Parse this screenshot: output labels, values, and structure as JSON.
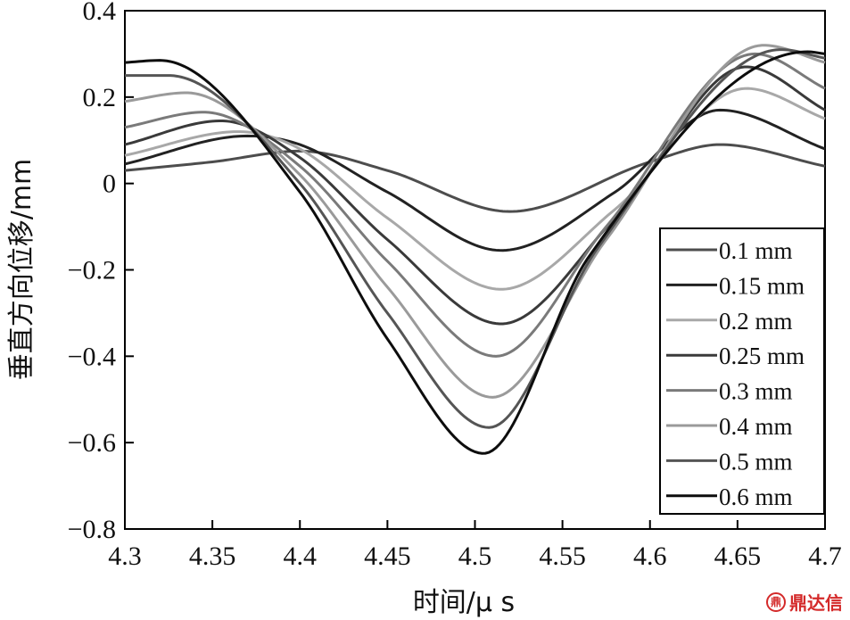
{
  "chart_data": {
    "type": "line",
    "ylabel": "垂直方向位移/mm",
    "xlabel": "时间/μ s",
    "xlim": [
      4.3,
      4.7
    ],
    "ylim": [
      -0.8,
      0.4
    ],
    "xticks": [
      "4.3",
      "4.35",
      "4.4",
      "4.45",
      "4.5",
      "4.55",
      "4.6",
      "4.65",
      "4.7"
    ],
    "yticks": [
      "0.4",
      "0.2",
      "0",
      "−0.2",
      "−0.4",
      "−0.6",
      "−0.8"
    ],
    "grid": false,
    "legend_position": "bottom-right",
    "series": [
      {
        "name": "0.1 mm",
        "color": "#4d4d4d",
        "x": [
          4.3,
          4.35,
          4.4,
          4.45,
          4.52,
          4.6,
          4.64,
          4.7
        ],
        "y": [
          0.03,
          0.05,
          0.075,
          0.03,
          -0.065,
          0.05,
          0.09,
          0.04
        ]
      },
      {
        "name": "0.15 mm",
        "color": "#222222",
        "x": [
          4.3,
          4.37,
          4.4,
          4.45,
          4.515,
          4.58,
          4.64,
          4.7
        ],
        "y": [
          0.045,
          0.11,
          0.09,
          -0.02,
          -0.155,
          -0.02,
          0.17,
          0.08
        ]
      },
      {
        "name": "0.2 mm",
        "color": "#a8a8a8",
        "x": [
          4.3,
          4.365,
          4.4,
          4.45,
          4.515,
          4.58,
          4.655,
          4.7
        ],
        "y": [
          0.065,
          0.12,
          0.08,
          -0.08,
          -0.245,
          -0.06,
          0.22,
          0.15
        ]
      },
      {
        "name": "0.25 mm",
        "color": "#3a3a3a",
        "x": [
          4.3,
          4.355,
          4.4,
          4.45,
          4.515,
          4.58,
          4.655,
          4.7
        ],
        "y": [
          0.09,
          0.145,
          0.06,
          -0.13,
          -0.325,
          -0.08,
          0.27,
          0.17
        ]
      },
      {
        "name": "0.3 mm",
        "color": "#7a7a7a",
        "x": [
          4.3,
          4.345,
          4.4,
          4.45,
          4.512,
          4.575,
          4.66,
          4.7
        ],
        "y": [
          0.13,
          0.165,
          0.04,
          -0.18,
          -0.4,
          -0.1,
          0.3,
          0.22
        ]
      },
      {
        "name": "0.4 mm",
        "color": "#9a9a9a",
        "x": [
          4.3,
          4.335,
          4.4,
          4.45,
          4.51,
          4.575,
          4.665,
          4.7
        ],
        "y": [
          0.19,
          0.21,
          0.02,
          -0.24,
          -0.495,
          -0.13,
          0.32,
          0.28
        ]
      },
      {
        "name": "0.5 mm",
        "color": "#555555",
        "x": [
          4.3,
          4.325,
          4.4,
          4.45,
          4.508,
          4.57,
          4.675,
          4.7
        ],
        "y": [
          0.25,
          0.25,
          0.0,
          -0.3,
          -0.565,
          -0.15,
          0.31,
          0.29
        ]
      },
      {
        "name": "0.6 mm",
        "color": "#0d0d0d",
        "x": [
          4.3,
          4.32,
          4.4,
          4.45,
          4.505,
          4.565,
          4.69,
          4.7
        ],
        "y": [
          0.28,
          0.285,
          -0.02,
          -0.36,
          -0.625,
          -0.17,
          0.305,
          0.3
        ]
      }
    ]
  },
  "watermark": {
    "text": "鼎达信",
    "logo_glyph": "鼎"
  }
}
